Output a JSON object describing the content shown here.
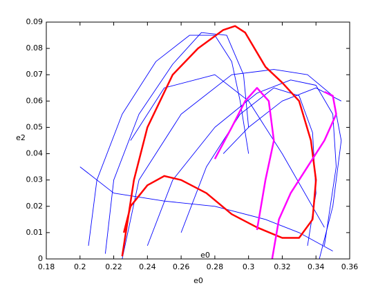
{
  "chart_data": {
    "type": "line",
    "xlabel": "e0",
    "ylabel": "e2",
    "annotation": "e0",
    "xlim": [
      0.18,
      0.36
    ],
    "xticks": [
      0.18,
      0.2,
      0.22,
      0.24,
      0.26,
      0.28,
      0.3,
      0.32,
      0.34,
      0.36
    ],
    "ylim": [
      0,
      0.09
    ],
    "yticks": [
      0,
      0.01,
      0.02,
      0.03,
      0.04,
      0.05,
      0.06,
      0.07,
      0.08,
      0.09
    ],
    "series": [
      {
        "color": "#0000ff",
        "x": [
          0.205,
          0.21,
          0.225,
          0.245,
          0.265,
          0.28,
          0.29,
          0.295,
          0.3
        ],
        "values": [
          0.005,
          0.03,
          0.055,
          0.075,
          0.085,
          0.085,
          0.075,
          0.06,
          0.04
        ]
      },
      {
        "color": "#0000ff",
        "x": [
          0.215,
          0.22,
          0.235,
          0.255,
          0.272,
          0.287,
          0.297,
          0.3
        ],
        "values": [
          0.002,
          0.03,
          0.055,
          0.074,
          0.086,
          0.085,
          0.07,
          0.05
        ]
      },
      {
        "color": "#0000ff",
        "x": [
          0.225,
          0.235,
          0.26,
          0.29,
          0.315,
          0.335,
          0.35,
          0.355,
          0.35,
          0.342
        ],
        "values": [
          0.0,
          0.03,
          0.055,
          0.07,
          0.072,
          0.07,
          0.062,
          0.045,
          0.02,
          0.0
        ]
      },
      {
        "color": "#0000ff",
        "x": [
          0.24,
          0.255,
          0.28,
          0.305,
          0.325,
          0.34,
          0.35,
          0.352,
          0.345
        ],
        "values": [
          0.005,
          0.03,
          0.05,
          0.063,
          0.068,
          0.066,
          0.055,
          0.035,
          0.005
        ]
      },
      {
        "color": "#0000ff",
        "x": [
          0.26,
          0.275,
          0.295,
          0.315,
          0.33,
          0.338,
          0.34,
          0.335
        ],
        "values": [
          0.01,
          0.035,
          0.055,
          0.065,
          0.062,
          0.048,
          0.025,
          0.005
        ]
      },
      {
        "color": "#0000ff",
        "x": [
          0.2,
          0.22,
          0.25,
          0.28,
          0.31,
          0.33,
          0.35
        ],
        "values": [
          0.035,
          0.025,
          0.022,
          0.02,
          0.015,
          0.01,
          0.003
        ]
      },
      {
        "color": "#0000ff",
        "x": [
          0.23,
          0.25,
          0.28,
          0.3,
          0.32,
          0.345
        ],
        "values": [
          0.045,
          0.065,
          0.07,
          0.06,
          0.04,
          0.012
        ]
      },
      {
        "color": "#0000ff",
        "x": [
          0.285,
          0.3,
          0.32,
          0.34,
          0.355
        ],
        "values": [
          0.04,
          0.05,
          0.06,
          0.065,
          0.06
        ]
      },
      {
        "color": "#ff0000",
        "x": [
          0.225,
          0.232,
          0.24,
          0.255,
          0.27,
          0.285,
          0.292,
          0.298,
          0.31,
          0.32,
          0.33,
          0.337,
          0.34,
          0.338,
          0.33,
          0.32,
          0.305,
          0.29,
          0.275,
          0.26,
          0.25,
          0.24,
          0.23,
          0.226
        ],
        "values": [
          0.001,
          0.03,
          0.05,
          0.07,
          0.08,
          0.087,
          0.0885,
          0.086,
          0.073,
          0.067,
          0.06,
          0.045,
          0.03,
          0.015,
          0.008,
          0.008,
          0.012,
          0.017,
          0.025,
          0.03,
          0.0315,
          0.028,
          0.02,
          0.01
        ]
      },
      {
        "color": "#ff00ff",
        "x": [
          0.314,
          0.318,
          0.325,
          0.335,
          0.345,
          0.352,
          0.35,
          0.345
        ],
        "values": [
          0.0,
          0.015,
          0.025,
          0.035,
          0.045,
          0.055,
          0.062,
          0.0635
        ]
      },
      {
        "color": "#ff00ff",
        "x": [
          0.305,
          0.31,
          0.315,
          0.312,
          0.305,
          0.298,
          0.29,
          0.28
        ],
        "values": [
          0.011,
          0.03,
          0.045,
          0.06,
          0.065,
          0.06,
          0.05,
          0.038
        ]
      }
    ]
  }
}
